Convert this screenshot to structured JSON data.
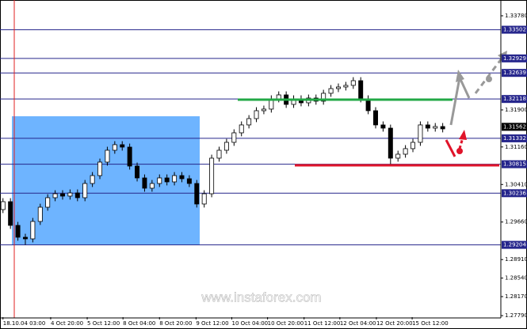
{
  "chart_data": {
    "type": "candlestick",
    "x_labels": [
      {
        "value": 0,
        "label": "18.10.04 03:00"
      },
      {
        "value": 6.4,
        "label": "4 Oct 20:00"
      },
      {
        "value": 11.3,
        "label": "5 Oct 12:00"
      },
      {
        "value": 16.1,
        "label": "8 Oct 04:00"
      },
      {
        "value": 21,
        "label": "8 Oct 20:00"
      },
      {
        "value": 25.9,
        "label": "9 Oct 12:00"
      },
      {
        "value": 30.7,
        "label": "10 Oct 04:00"
      },
      {
        "value": 35.5,
        "label": "10 Oct 20:00"
      },
      {
        "value": 40.4,
        "label": "11 Oct 12:00"
      },
      {
        "value": 45.2,
        "label": "12 Oct 04:00"
      },
      {
        "value": 50.1,
        "label": "12 Oct 20:00"
      },
      {
        "value": 54.9,
        "label": "15 Oct 12:00"
      }
    ],
    "xlim": [
      -0.4,
      66.8
    ],
    "open": [
      1.29909,
      1.30067,
      1.29593,
      1.29356,
      1.29324,
      1.29672,
      1.29956,
      1.30146,
      1.30225,
      1.30178,
      1.30241,
      1.30146,
      1.3043,
      1.30588,
      1.30857,
      1.31094,
      1.31205,
      1.31157,
      1.30778,
      1.30541,
      1.30336,
      1.3043,
      1.30541,
      1.30462,
      1.30588,
      1.30525,
      1.3043,
      1.3002,
      1.30225,
      1.30936,
      1.31094,
      1.31252,
      1.31442,
      1.316,
      1.31726,
      1.31884,
      1.31916,
      1.32121,
      1.322,
      1.3201,
      1.32121,
      1.32042,
      1.32137,
      1.32074,
      1.32232,
      1.32326,
      1.32358,
      1.3239,
      1.32484,
      1.32121,
      1.31884,
      1.316,
      1.31536,
      1.30936,
      1.31015,
      1.31126,
      1.31252,
      1.316,
      1.31536,
      1.31568
    ],
    "high": [
      1.30137,
      1.30137,
      1.29663,
      1.29426,
      1.29742,
      1.30026,
      1.30216,
      1.30295,
      1.30295,
      1.30311,
      1.30311,
      1.305,
      1.30658,
      1.30927,
      1.31164,
      1.31275,
      1.31275,
      1.31227,
      1.30848,
      1.30611,
      1.305,
      1.30611,
      1.30611,
      1.30658,
      1.30658,
      1.30595,
      1.305,
      1.30295,
      1.31006,
      1.31164,
      1.31322,
      1.31512,
      1.3167,
      1.31796,
      1.31954,
      1.31986,
      1.32191,
      1.3227,
      1.3227,
      1.32191,
      1.32191,
      1.32207,
      1.32207,
      1.32302,
      1.32396,
      1.32428,
      1.3246,
      1.32554,
      1.32554,
      1.32191,
      1.31954,
      1.3167,
      1.31606,
      1.31085,
      1.31196,
      1.31322,
      1.3167,
      1.3167,
      1.31638,
      1.31638
    ],
    "low": [
      1.29839,
      1.29523,
      1.29286,
      1.29204,
      1.29254,
      1.29602,
      1.29886,
      1.30076,
      1.30108,
      1.30108,
      1.30076,
      1.30076,
      1.3036,
      1.30518,
      1.30787,
      1.31024,
      1.31087,
      1.30708,
      1.30471,
      1.30266,
      1.30266,
      1.3036,
      1.30392,
      1.30392,
      1.30455,
      1.3036,
      1.2995,
      1.2995,
      1.30155,
      1.30866,
      1.31024,
      1.31182,
      1.31372,
      1.3153,
      1.31656,
      1.31814,
      1.31846,
      1.32051,
      1.3194,
      1.3194,
      1.31972,
      1.31972,
      1.32004,
      1.32004,
      1.32162,
      1.32256,
      1.32288,
      1.3232,
      1.32051,
      1.31814,
      1.3153,
      1.31466,
      1.30815,
      1.30866,
      1.30945,
      1.31056,
      1.31182,
      1.31466,
      1.31466,
      1.31451
    ],
    "close": [
      1.30067,
      1.29593,
      1.29356,
      1.29324,
      1.29672,
      1.29956,
      1.30146,
      1.30225,
      1.30178,
      1.30241,
      1.30146,
      1.3043,
      1.30588,
      1.30857,
      1.31094,
      1.31205,
      1.31157,
      1.30778,
      1.30541,
      1.30336,
      1.3043,
      1.30541,
      1.30462,
      1.30588,
      1.30525,
      1.3043,
      1.3002,
      1.30225,
      1.30936,
      1.31094,
      1.31252,
      1.31442,
      1.316,
      1.31726,
      1.31884,
      1.31916,
      1.32121,
      1.322,
      1.3201,
      1.32121,
      1.32042,
      1.32137,
      1.32074,
      1.32232,
      1.32326,
      1.32358,
      1.3239,
      1.32484,
      1.32121,
      1.31884,
      1.316,
      1.31536,
      1.30936,
      1.31015,
      1.31126,
      1.31252,
      1.316,
      1.31536,
      1.31568,
      1.31521
    ],
    "ylim": [
      1.2776,
      1.34064
    ],
    "yticks": [
      {
        "value": 1.3378,
        "label": "1.33780"
      },
      {
        "value": 1.319,
        "label": "1.31900"
      },
      {
        "value": 1.3116,
        "label": "1.31160"
      },
      {
        "value": 1.3041,
        "label": "1.30410"
      },
      {
        "value": 1.2966,
        "label": "1.29660"
      },
      {
        "value": 1.2891,
        "label": "1.28910"
      },
      {
        "value": 1.2854,
        "label": "1.28540"
      },
      {
        "value": 1.2817,
        "label": "1.28170"
      },
      {
        "value": 1.2779,
        "label": "1.27790"
      }
    ],
    "levels": [
      1.33502,
      1.32929,
      1.32639,
      1.32118,
      1.31332,
      1.30815,
      1.30236,
      1.29204
    ],
    "level_color": "#26268c",
    "current_price": 1.31562,
    "bull_color": "#ffffff",
    "bear_color": "#000000",
    "watermark": "www.instaforex.com"
  }
}
